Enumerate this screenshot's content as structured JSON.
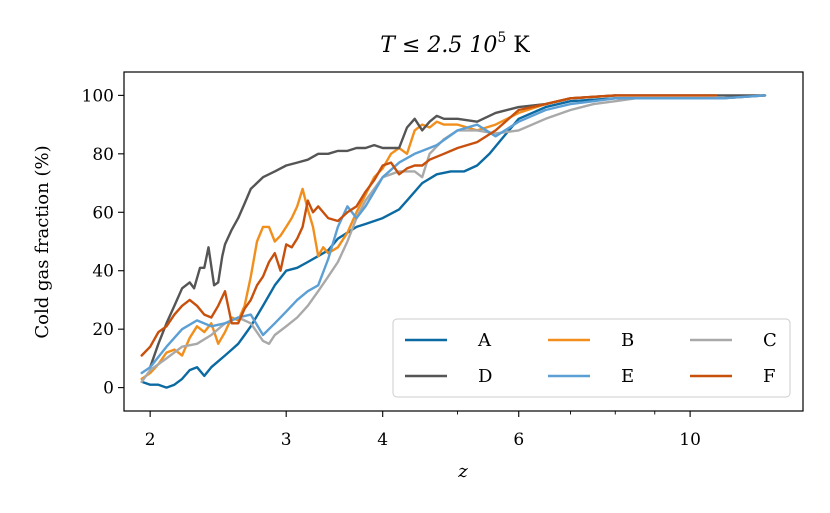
{
  "chart_data": {
    "type": "line",
    "title": {
      "main": "T ≤ 2.5 10",
      "sup": "5",
      "tail": " K"
    },
    "xlabel": "z",
    "ylabel": "Cold gas fraction (%)",
    "x_scale": "log",
    "xlim": [
      1.85,
      14.0
    ],
    "ylim": [
      -8,
      108
    ],
    "xticks": [
      2,
      3,
      4,
      6,
      10
    ],
    "xtick_labels": [
      "2",
      "3",
      "4",
      "6",
      "10"
    ],
    "yticks": [
      0,
      20,
      40,
      60,
      80,
      100
    ],
    "ytick_labels": [
      "0",
      "20",
      "40",
      "60",
      "80",
      "100"
    ],
    "grid": false,
    "legend": {
      "placement": "lower-right",
      "columns": 3
    },
    "series": [
      {
        "name": "A",
        "color": "#0b6aa2",
        "x": [
          1.95,
          2.0,
          2.05,
          2.1,
          2.15,
          2.2,
          2.25,
          2.3,
          2.35,
          2.4,
          2.45,
          2.5,
          2.55,
          2.6,
          2.65,
          2.7,
          2.8,
          2.9,
          3.0,
          3.1,
          3.2,
          3.3,
          3.4,
          3.5,
          3.6,
          3.7,
          3.8,
          4.0,
          4.2,
          4.3,
          4.5,
          4.7,
          4.9,
          5.1,
          5.3,
          5.5,
          5.7,
          6.0,
          6.5,
          7.0,
          8.0,
          9.0,
          10.0,
          11.0,
          12.5
        ],
        "y": [
          2,
          1,
          1,
          0,
          1,
          3,
          6,
          7,
          4,
          7,
          9,
          11,
          13,
          15,
          18,
          21,
          28,
          35,
          40,
          41,
          43,
          45,
          47,
          51,
          53,
          55,
          56,
          58,
          61,
          64,
          70,
          73,
          74,
          74,
          76,
          80,
          85,
          92,
          96,
          98,
          99,
          99,
          99,
          99,
          100
        ]
      },
      {
        "name": "B",
        "color": "#f28e1c",
        "x": [
          1.95,
          2.0,
          2.05,
          2.1,
          2.15,
          2.2,
          2.25,
          2.3,
          2.35,
          2.4,
          2.45,
          2.5,
          2.55,
          2.6,
          2.65,
          2.7,
          2.75,
          2.8,
          2.85,
          2.9,
          2.95,
          3.0,
          3.05,
          3.1,
          3.15,
          3.2,
          3.25,
          3.3,
          3.35,
          3.4,
          3.5,
          3.6,
          3.7,
          3.8,
          3.9,
          4.0,
          4.1,
          4.2,
          4.3,
          4.4,
          4.5,
          4.6,
          4.7,
          4.8,
          5.0,
          5.3,
          5.6,
          6.0,
          6.5,
          7.0,
          8.0
        ],
        "y": [
          3,
          5,
          8,
          12,
          13,
          11,
          17,
          21,
          19,
          22,
          15,
          19,
          24,
          23,
          28,
          38,
          50,
          55,
          55,
          50,
          52,
          55,
          58,
          62,
          68,
          61,
          55,
          45,
          48,
          46,
          48,
          53,
          60,
          66,
          72,
          75,
          80,
          82,
          80,
          88,
          90,
          89,
          91,
          90,
          90,
          88,
          90,
          94,
          97,
          99,
          100
        ]
      },
      {
        "name": "C",
        "color": "#a9a9a9",
        "x": [
          1.95,
          2.0,
          2.1,
          2.2,
          2.3,
          2.4,
          2.5,
          2.6,
          2.7,
          2.8,
          2.85,
          2.9,
          3.0,
          3.1,
          3.2,
          3.3,
          3.4,
          3.5,
          3.6,
          3.7,
          3.8,
          3.9,
          4.0,
          4.2,
          4.4,
          4.5,
          4.6,
          4.8,
          5.0,
          5.3,
          5.6,
          6.0,
          6.5,
          7.0,
          7.5,
          8.0,
          8.5,
          9.0,
          10.0,
          11.0,
          12.5
        ],
        "y": [
          2,
          6,
          10,
          14,
          15,
          18,
          22,
          24,
          22,
          16,
          15,
          18,
          21,
          24,
          28,
          33,
          38,
          43,
          50,
          58,
          64,
          68,
          72,
          74,
          74,
          72,
          80,
          85,
          88,
          88,
          87,
          88,
          92,
          95,
          97,
          98,
          99,
          99,
          99,
          99,
          100
        ]
      },
      {
        "name": "D",
        "color": "#555555",
        "x": [
          2.0,
          2.05,
          2.1,
          2.15,
          2.2,
          2.25,
          2.28,
          2.32,
          2.35,
          2.38,
          2.42,
          2.45,
          2.48,
          2.5,
          2.55,
          2.6,
          2.65,
          2.7,
          2.8,
          2.9,
          3.0,
          3.1,
          3.2,
          3.3,
          3.4,
          3.5,
          3.6,
          3.7,
          3.8,
          3.9,
          4.0,
          4.1,
          4.2,
          4.3,
          4.4,
          4.5,
          4.6,
          4.7,
          4.8,
          5.0,
          5.3,
          5.6,
          6.0,
          6.5,
          7.0,
          8.0,
          9.0,
          10.0,
          11.0,
          12.5
        ],
        "y": [
          7,
          15,
          22,
          28,
          34,
          36,
          34,
          41,
          41,
          48,
          35,
          36,
          45,
          49,
          54,
          58,
          63,
          68,
          72,
          74,
          76,
          77,
          78,
          80,
          80,
          81,
          81,
          82,
          82,
          83,
          82,
          82,
          82,
          89,
          92,
          88,
          91,
          93,
          92,
          92,
          91,
          94,
          96,
          97,
          99,
          100,
          100,
          100,
          100,
          100
        ]
      },
      {
        "name": "E",
        "color": "#5b9fd4",
        "x": [
          1.95,
          2.0,
          2.1,
          2.2,
          2.3,
          2.4,
          2.5,
          2.6,
          2.7,
          2.8,
          2.9,
          3.0,
          3.1,
          3.2,
          3.3,
          3.4,
          3.5,
          3.6,
          3.7,
          3.8,
          3.9,
          4.0,
          4.2,
          4.4,
          4.5,
          4.7,
          5.0,
          5.3,
          5.6,
          6.0,
          6.5,
          7.0,
          7.5,
          8.0,
          9.0,
          10.0,
          11.0,
          12.5
        ],
        "y": [
          5,
          7,
          14,
          20,
          23,
          21,
          22,
          24,
          25,
          18,
          22,
          26,
          30,
          33,
          35,
          44,
          55,
          62,
          58,
          62,
          67,
          72,
          77,
          80,
          81,
          83,
          88,
          90,
          86,
          91,
          95,
          97,
          98,
          99,
          99,
          99,
          99,
          100
        ]
      },
      {
        "name": "F",
        "color": "#c8500d",
        "x": [
          1.95,
          2.0,
          2.05,
          2.1,
          2.15,
          2.2,
          2.25,
          2.3,
          2.35,
          2.4,
          2.45,
          2.5,
          2.55,
          2.6,
          2.65,
          2.7,
          2.75,
          2.8,
          2.85,
          2.9,
          2.95,
          3.0,
          3.05,
          3.1,
          3.15,
          3.2,
          3.25,
          3.3,
          3.4,
          3.5,
          3.6,
          3.7,
          3.8,
          3.9,
          4.0,
          4.1,
          4.2,
          4.3,
          4.4,
          4.5,
          4.6,
          4.8,
          5.0,
          5.3,
          5.6,
          6.0,
          6.5,
          7.0,
          8.0,
          9.0,
          10.0,
          10.8
        ],
        "y": [
          11,
          14,
          19,
          21,
          25,
          28,
          30,
          28,
          25,
          24,
          28,
          33,
          22,
          22,
          27,
          30,
          35,
          38,
          43,
          46,
          40,
          49,
          48,
          51,
          55,
          64,
          60,
          62,
          58,
          57,
          60,
          62,
          67,
          71,
          76,
          77,
          73,
          75,
          76,
          76,
          78,
          80,
          82,
          84,
          88,
          95,
          97,
          99,
          100,
          100,
          100,
          100
        ]
      }
    ]
  }
}
